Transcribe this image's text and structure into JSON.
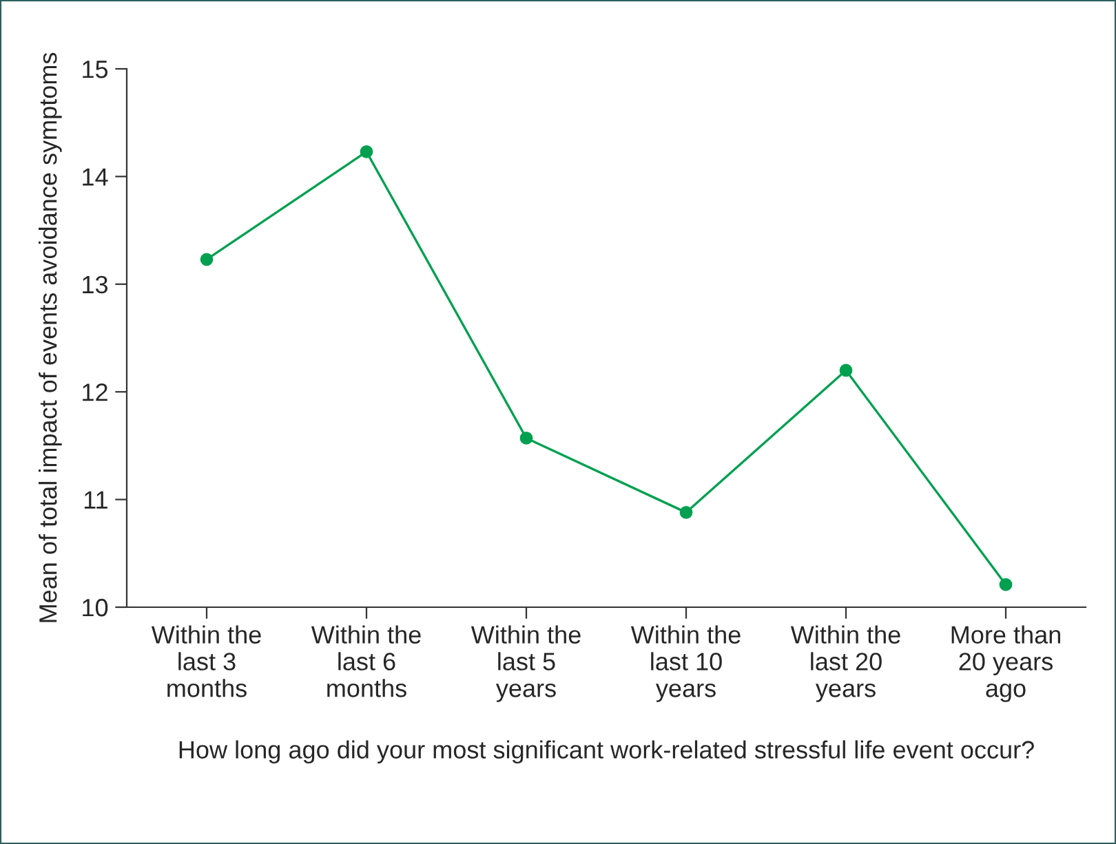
{
  "chart_data": {
    "type": "line",
    "xlabel": "How long ago did your most significant work-related stressful life event occur?",
    "ylabel": "Mean of total impact of events avoidance symptoms",
    "categories": [
      "Within the\nlast 3\nmonths",
      "Within the\nlast 6\nmonths",
      "Within the\nlast 5\nyears",
      "Within the\nlast 10\nyears",
      "Within the\nlast 20\nyears",
      "More than\n20 years\nago"
    ],
    "series": [
      {
        "color": "#00a050",
        "values": [
          13.23,
          14.23,
          11.57,
          10.88,
          12.2,
          10.21
        ]
      }
    ],
    "ylim": [
      10,
      15
    ],
    "yticks": [
      10,
      11,
      12,
      13,
      14,
      15
    ],
    "marker": "circle",
    "line_style": "solid",
    "grid": false,
    "legend": false
  }
}
